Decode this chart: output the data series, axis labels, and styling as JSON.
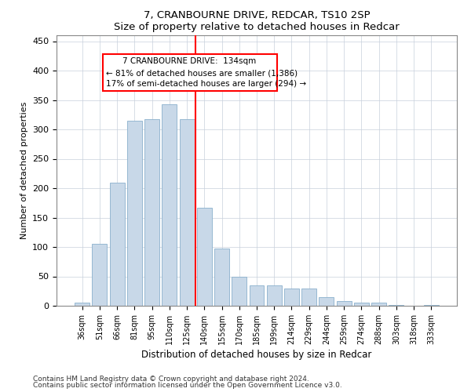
{
  "title1": "7, CRANBOURNE DRIVE, REDCAR, TS10 2SP",
  "title2": "Size of property relative to detached houses in Redcar",
  "xlabel": "Distribution of detached houses by size in Redcar",
  "ylabel": "Number of detached properties",
  "bar_labels": [
    "36sqm",
    "51sqm",
    "66sqm",
    "81sqm",
    "95sqm",
    "110sqm",
    "125sqm",
    "140sqm",
    "155sqm",
    "170sqm",
    "185sqm",
    "199sqm",
    "214sqm",
    "229sqm",
    "244sqm",
    "259sqm",
    "274sqm",
    "288sqm",
    "303sqm",
    "318sqm",
    "333sqm"
  ],
  "bar_values": [
    5,
    105,
    210,
    315,
    317,
    343,
    318,
    167,
    97,
    50,
    35,
    35,
    29,
    30,
    15,
    8,
    5,
    5,
    1,
    0,
    1
  ],
  "bar_color": "#c8d8e8",
  "bar_edgecolor": "#8ab0cc",
  "vline_color": "red",
  "ylim": [
    0,
    460
  ],
  "yticks": [
    0,
    50,
    100,
    150,
    200,
    250,
    300,
    350,
    400,
    450
  ],
  "annotation_title": "7 CRANBOURNE DRIVE:  134sqm",
  "annotation_line1": "← 81% of detached houses are smaller (1,386)",
  "annotation_line2": "17% of semi-detached houses are larger (294) →",
  "footnote1": "Contains HM Land Registry data © Crown copyright and database right 2024.",
  "footnote2": "Contains public sector information licensed under the Open Government Licence v3.0."
}
